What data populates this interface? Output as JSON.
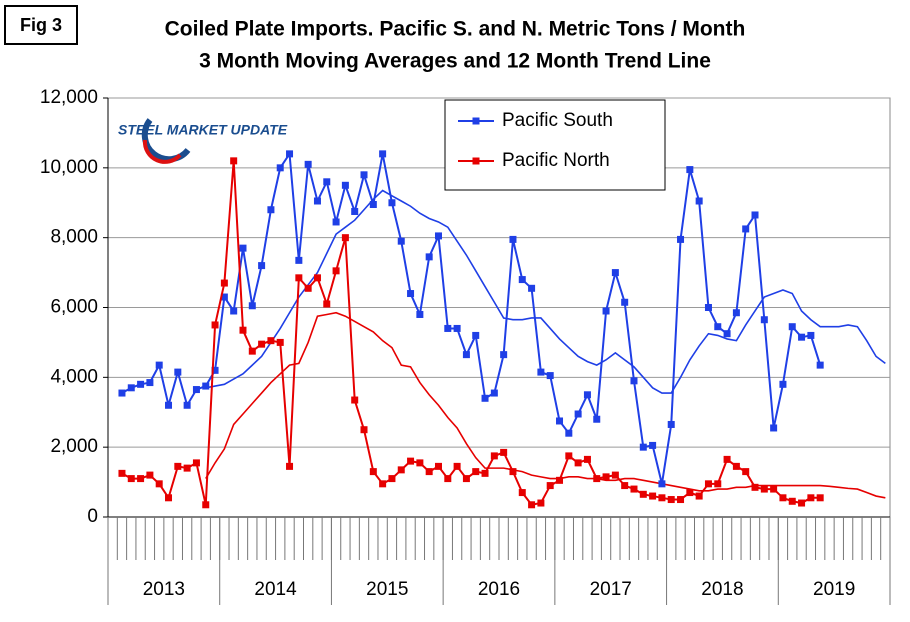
{
  "chart_data": {
    "type": "line",
    "figure_label": "Fig 3",
    "title": "Coiled Plate Imports. Pacific S. and N. Metric Tons / Month",
    "subtitle": "3 Month Moving Averages and 12 Month Trend Line",
    "logo": "STEEL MARKET UPDATE",
    "categories": [
      null,
      null,
      null,
      null,
      null,
      null,
      null,
      null,
      null,
      null,
      null,
      null,
      null,
      null,
      null,
      null,
      null,
      null,
      null,
      null,
      null,
      null,
      null,
      null,
      null,
      null,
      null,
      null,
      null,
      null,
      null,
      null,
      null,
      null,
      null,
      null,
      null,
      null,
      null,
      null,
      null,
      null,
      null,
      null,
      null,
      null,
      null,
      null,
      null,
      null,
      null,
      null,
      null,
      null,
      null,
      null,
      null,
      null,
      null,
      null,
      null,
      null,
      null,
      null,
      null,
      null,
      null,
      null,
      null,
      null,
      null,
      null,
      null,
      null,
      null,
      null,
      null,
      null,
      null,
      null,
      null,
      null,
      null,
      null
    ],
    "x_groups": [
      "2013",
      "2014",
      "2015",
      "2016",
      "2017",
      "2018",
      "2019"
    ],
    "series": [
      {
        "name": "Pacific South",
        "color": "#1f3fe6",
        "values": [
          null,
          3550,
          3700,
          3800,
          3850,
          4350,
          3200,
          4150,
          3200,
          3650,
          3750,
          4200,
          6300,
          5900,
          7700,
          6050,
          7200,
          8800,
          10000,
          10400,
          7350,
          10100,
          9050,
          9600,
          8450,
          9500,
          8750,
          9800,
          8950,
          10400,
          9000,
          7900,
          6400,
          5800,
          7450,
          8050,
          5400,
          5400,
          4650,
          5200,
          3400,
          3550,
          4650,
          7950,
          6800,
          6550,
          4150,
          4050,
          2750,
          2400,
          2950,
          3500,
          2800,
          5900,
          7000,
          6150,
          3900,
          2000,
          2050,
          950,
          2650,
          7950,
          9950,
          9050,
          6000,
          5450,
          5250,
          5850,
          8250,
          8650,
          5650,
          2550,
          3800,
          5450,
          5150,
          5200,
          4350,
          null,
          null,
          null,
          null,
          null,
          null,
          null
        ]
      },
      {
        "name": "Pacific North",
        "color": "#e60000",
        "values": [
          null,
          1250,
          1100,
          1100,
          1200,
          950,
          550,
          1450,
          1400,
          1550,
          350,
          5500,
          6700,
          10200,
          5350,
          4750,
          4950,
          5050,
          5000,
          1450,
          6850,
          6550,
          6850,
          6100,
          7050,
          8000,
          3350,
          2500,
          1300,
          950,
          1100,
          1350,
          1600,
          1550,
          1300,
          1450,
          1100,
          1450,
          1100,
          1300,
          1250,
          1750,
          1850,
          1300,
          700,
          350,
          400,
          900,
          1050,
          1750,
          1550,
          1650,
          1100,
          1150,
          1200,
          900,
          800,
          650,
          600,
          550,
          500,
          500,
          700,
          600,
          950,
          950,
          1650,
          1450,
          1300,
          850,
          800,
          800,
          550,
          450,
          400,
          550,
          550,
          null,
          null,
          null,
          null,
          null,
          null,
          null
        ]
      }
    ],
    "trend_lines": [
      {
        "color": "#1f3fe6",
        "values": [
          null,
          null,
          null,
          null,
          null,
          null,
          null,
          null,
          null,
          null,
          3700,
          3750,
          3800,
          3950,
          4100,
          4350,
          4600,
          5000,
          5400,
          5850,
          6300,
          6650,
          7000,
          7550,
          8100,
          8300,
          8500,
          8800,
          9100,
          9350,
          9200,
          9050,
          8900,
          8700,
          8550,
          8450,
          8300,
          7900,
          7500,
          7050,
          6600,
          6150,
          5700,
          5650,
          5650,
          5700,
          5700,
          5400,
          5100,
          4850,
          4600,
          4450,
          4350,
          4500,
          4700,
          4500,
          4300,
          4000,
          3700,
          3550,
          3550,
          4000,
          4500,
          4900,
          5250,
          5200,
          5100,
          5050,
          5500,
          5900,
          6300,
          6400,
          6500,
          6400,
          5900,
          5650,
          5450,
          5450,
          5450,
          5500,
          5450,
          5050,
          4600,
          4400
        ]
      },
      {
        "color": "#e60000",
        "values": [
          null,
          null,
          null,
          null,
          null,
          null,
          null,
          null,
          null,
          null,
          1100,
          1550,
          1950,
          2650,
          2950,
          3250,
          3550,
          3850,
          4100,
          4350,
          4400,
          5000,
          5750,
          5800,
          5850,
          5750,
          5600,
          5450,
          5300,
          5050,
          4850,
          4350,
          4300,
          3850,
          3500,
          3200,
          2850,
          2550,
          2100,
          1700,
          1400,
          1400,
          1400,
          1350,
          1300,
          1200,
          1150,
          1100,
          1100,
          1150,
          1150,
          1100,
          1100,
          1050,
          1050,
          1100,
          1100,
          1050,
          1000,
          950,
          900,
          850,
          800,
          750,
          750,
          800,
          800,
          850,
          850,
          900,
          900,
          900,
          900,
          900,
          900,
          900,
          900,
          880,
          850,
          820,
          800,
          700,
          600,
          550
        ]
      }
    ],
    "ylim": [
      0,
      12000
    ],
    "yticks": [
      0,
      {
        "value": 2000,
        "label": "2,000"
      },
      {
        "value": 4000,
        "label": "4,000"
      },
      {
        "value": 6000,
        "label": "6,000"
      },
      {
        "value": 8000,
        "label": "8,000"
      },
      {
        "value": 10000,
        "label": "10,000"
      },
      {
        "value": 12000,
        "label": "12,000"
      }
    ],
    "grid": true
  }
}
